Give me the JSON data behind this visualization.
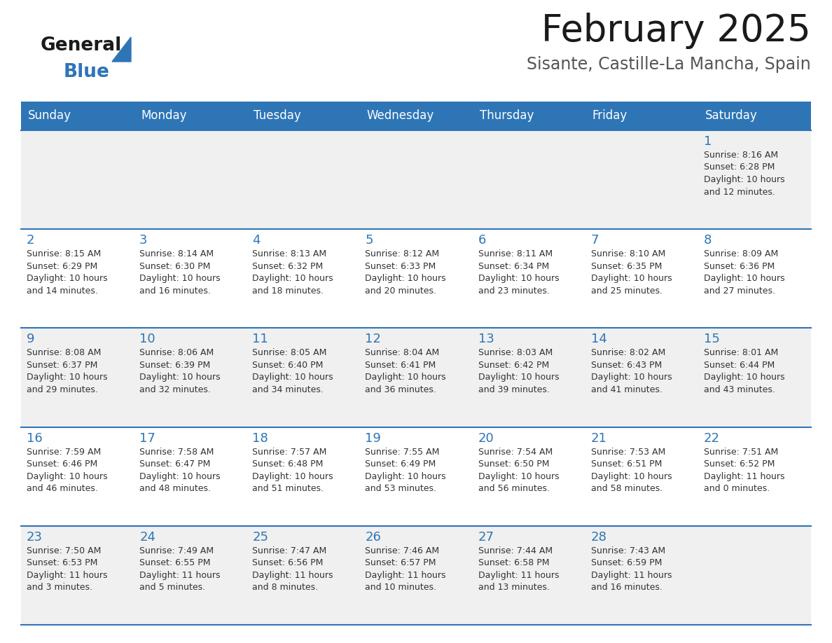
{
  "title": "February 2025",
  "subtitle": "Sisante, Castille-La Mancha, Spain",
  "header_color": "#2e75b6",
  "header_text_color": "#ffffff",
  "cell_bg_even": "#f0f0f0",
  "cell_bg_odd": "#ffffff",
  "day_number_color": "#2e75b6",
  "info_text_color": "#333333",
  "border_color": "#2e75b6",
  "days_of_week": [
    "Sunday",
    "Monday",
    "Tuesday",
    "Wednesday",
    "Thursday",
    "Friday",
    "Saturday"
  ],
  "weeks": [
    [
      {
        "day": null,
        "sunrise": null,
        "sunset": null,
        "daylight": null
      },
      {
        "day": null,
        "sunrise": null,
        "sunset": null,
        "daylight": null
      },
      {
        "day": null,
        "sunrise": null,
        "sunset": null,
        "daylight": null
      },
      {
        "day": null,
        "sunrise": null,
        "sunset": null,
        "daylight": null
      },
      {
        "day": null,
        "sunrise": null,
        "sunset": null,
        "daylight": null
      },
      {
        "day": null,
        "sunrise": null,
        "sunset": null,
        "daylight": null
      },
      {
        "day": 1,
        "sunrise": "8:16 AM",
        "sunset": "6:28 PM",
        "daylight": "10 hours\nand 12 minutes."
      }
    ],
    [
      {
        "day": 2,
        "sunrise": "8:15 AM",
        "sunset": "6:29 PM",
        "daylight": "10 hours\nand 14 minutes."
      },
      {
        "day": 3,
        "sunrise": "8:14 AM",
        "sunset": "6:30 PM",
        "daylight": "10 hours\nand 16 minutes."
      },
      {
        "day": 4,
        "sunrise": "8:13 AM",
        "sunset": "6:32 PM",
        "daylight": "10 hours\nand 18 minutes."
      },
      {
        "day": 5,
        "sunrise": "8:12 AM",
        "sunset": "6:33 PM",
        "daylight": "10 hours\nand 20 minutes."
      },
      {
        "day": 6,
        "sunrise": "8:11 AM",
        "sunset": "6:34 PM",
        "daylight": "10 hours\nand 23 minutes."
      },
      {
        "day": 7,
        "sunrise": "8:10 AM",
        "sunset": "6:35 PM",
        "daylight": "10 hours\nand 25 minutes."
      },
      {
        "day": 8,
        "sunrise": "8:09 AM",
        "sunset": "6:36 PM",
        "daylight": "10 hours\nand 27 minutes."
      }
    ],
    [
      {
        "day": 9,
        "sunrise": "8:08 AM",
        "sunset": "6:37 PM",
        "daylight": "10 hours\nand 29 minutes."
      },
      {
        "day": 10,
        "sunrise": "8:06 AM",
        "sunset": "6:39 PM",
        "daylight": "10 hours\nand 32 minutes."
      },
      {
        "day": 11,
        "sunrise": "8:05 AM",
        "sunset": "6:40 PM",
        "daylight": "10 hours\nand 34 minutes."
      },
      {
        "day": 12,
        "sunrise": "8:04 AM",
        "sunset": "6:41 PM",
        "daylight": "10 hours\nand 36 minutes."
      },
      {
        "day": 13,
        "sunrise": "8:03 AM",
        "sunset": "6:42 PM",
        "daylight": "10 hours\nand 39 minutes."
      },
      {
        "day": 14,
        "sunrise": "8:02 AM",
        "sunset": "6:43 PM",
        "daylight": "10 hours\nand 41 minutes."
      },
      {
        "day": 15,
        "sunrise": "8:01 AM",
        "sunset": "6:44 PM",
        "daylight": "10 hours\nand 43 minutes."
      }
    ],
    [
      {
        "day": 16,
        "sunrise": "7:59 AM",
        "sunset": "6:46 PM",
        "daylight": "10 hours\nand 46 minutes."
      },
      {
        "day": 17,
        "sunrise": "7:58 AM",
        "sunset": "6:47 PM",
        "daylight": "10 hours\nand 48 minutes."
      },
      {
        "day": 18,
        "sunrise": "7:57 AM",
        "sunset": "6:48 PM",
        "daylight": "10 hours\nand 51 minutes."
      },
      {
        "day": 19,
        "sunrise": "7:55 AM",
        "sunset": "6:49 PM",
        "daylight": "10 hours\nand 53 minutes."
      },
      {
        "day": 20,
        "sunrise": "7:54 AM",
        "sunset": "6:50 PM",
        "daylight": "10 hours\nand 56 minutes."
      },
      {
        "day": 21,
        "sunrise": "7:53 AM",
        "sunset": "6:51 PM",
        "daylight": "10 hours\nand 58 minutes."
      },
      {
        "day": 22,
        "sunrise": "7:51 AM",
        "sunset": "6:52 PM",
        "daylight": "11 hours\nand 0 minutes."
      }
    ],
    [
      {
        "day": 23,
        "sunrise": "7:50 AM",
        "sunset": "6:53 PM",
        "daylight": "11 hours\nand 3 minutes."
      },
      {
        "day": 24,
        "sunrise": "7:49 AM",
        "sunset": "6:55 PM",
        "daylight": "11 hours\nand 5 minutes."
      },
      {
        "day": 25,
        "sunrise": "7:47 AM",
        "sunset": "6:56 PM",
        "daylight": "11 hours\nand 8 minutes."
      },
      {
        "day": 26,
        "sunrise": "7:46 AM",
        "sunset": "6:57 PM",
        "daylight": "11 hours\nand 10 minutes."
      },
      {
        "day": 27,
        "sunrise": "7:44 AM",
        "sunset": "6:58 PM",
        "daylight": "11 hours\nand 13 minutes."
      },
      {
        "day": 28,
        "sunrise": "7:43 AM",
        "sunset": "6:59 PM",
        "daylight": "11 hours\nand 16 minutes."
      },
      {
        "day": null,
        "sunrise": null,
        "sunset": null,
        "daylight": null
      }
    ]
  ],
  "logo_general_color": "#1a1a1a",
  "logo_blue_color": "#2e75b6",
  "title_color": "#1a1a1a",
  "subtitle_color": "#555555",
  "title_fontsize": 38,
  "subtitle_fontsize": 17,
  "dow_fontsize": 12,
  "day_num_fontsize": 13,
  "info_fontsize": 9
}
